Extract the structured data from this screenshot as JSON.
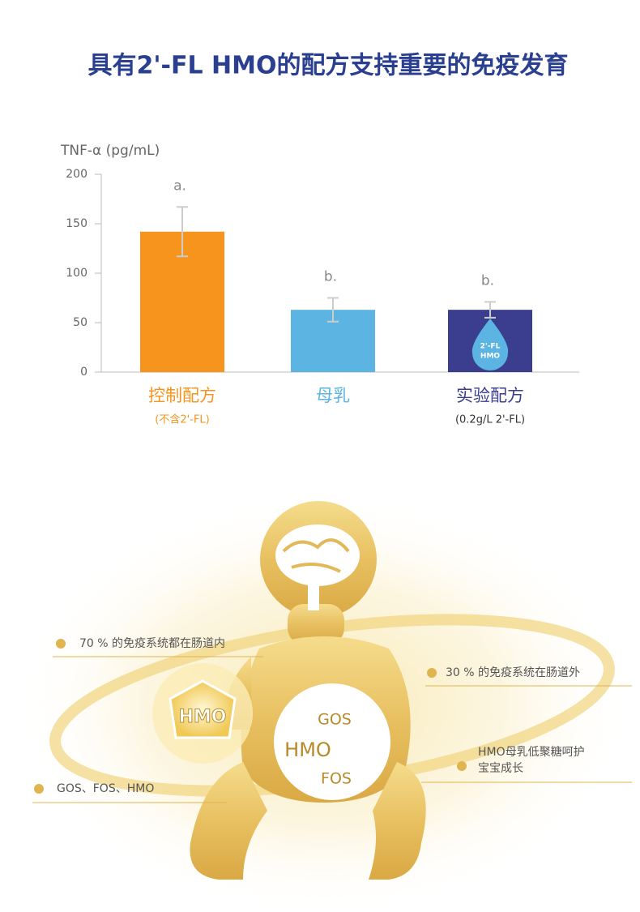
{
  "chart_data": {
    "type": "bar",
    "title": "具有2'-FL HMO的配方支持重要的免疫发育",
    "y_label": "TNF-α (pg/mL)",
    "categories": [
      "控制配方",
      "母乳",
      "实验配方"
    ],
    "category_notes": [
      "(不含2'-FL)",
      null,
      "(0.2g/L 2'-FL)"
    ],
    "values": [
      142,
      63,
      63
    ],
    "errors": [
      25,
      12,
      8
    ],
    "annotations": [
      "a.",
      "b.",
      "b."
    ],
    "colors": [
      "#f7941d",
      "#5cb4e2",
      "#3b3e8e"
    ],
    "ylim": [
      0,
      200
    ],
    "yticks": [
      0,
      50,
      100,
      150,
      200
    ],
    "badge": [
      "2'-FL",
      "HMO"
    ]
  },
  "illustration": {
    "hmo_icon": "HMO",
    "circle": [
      "GOS",
      "HMO",
      "FOS"
    ],
    "labels": {
      "inside": "70 % 的免疫系统都在肠道内",
      "outside": "30 % 的免疫系统在肠道外",
      "protect": [
        "HMO母乳低聚糖呵护",
        "宝宝成长"
      ],
      "ingredients": "GOS、FOS、HMO"
    }
  }
}
